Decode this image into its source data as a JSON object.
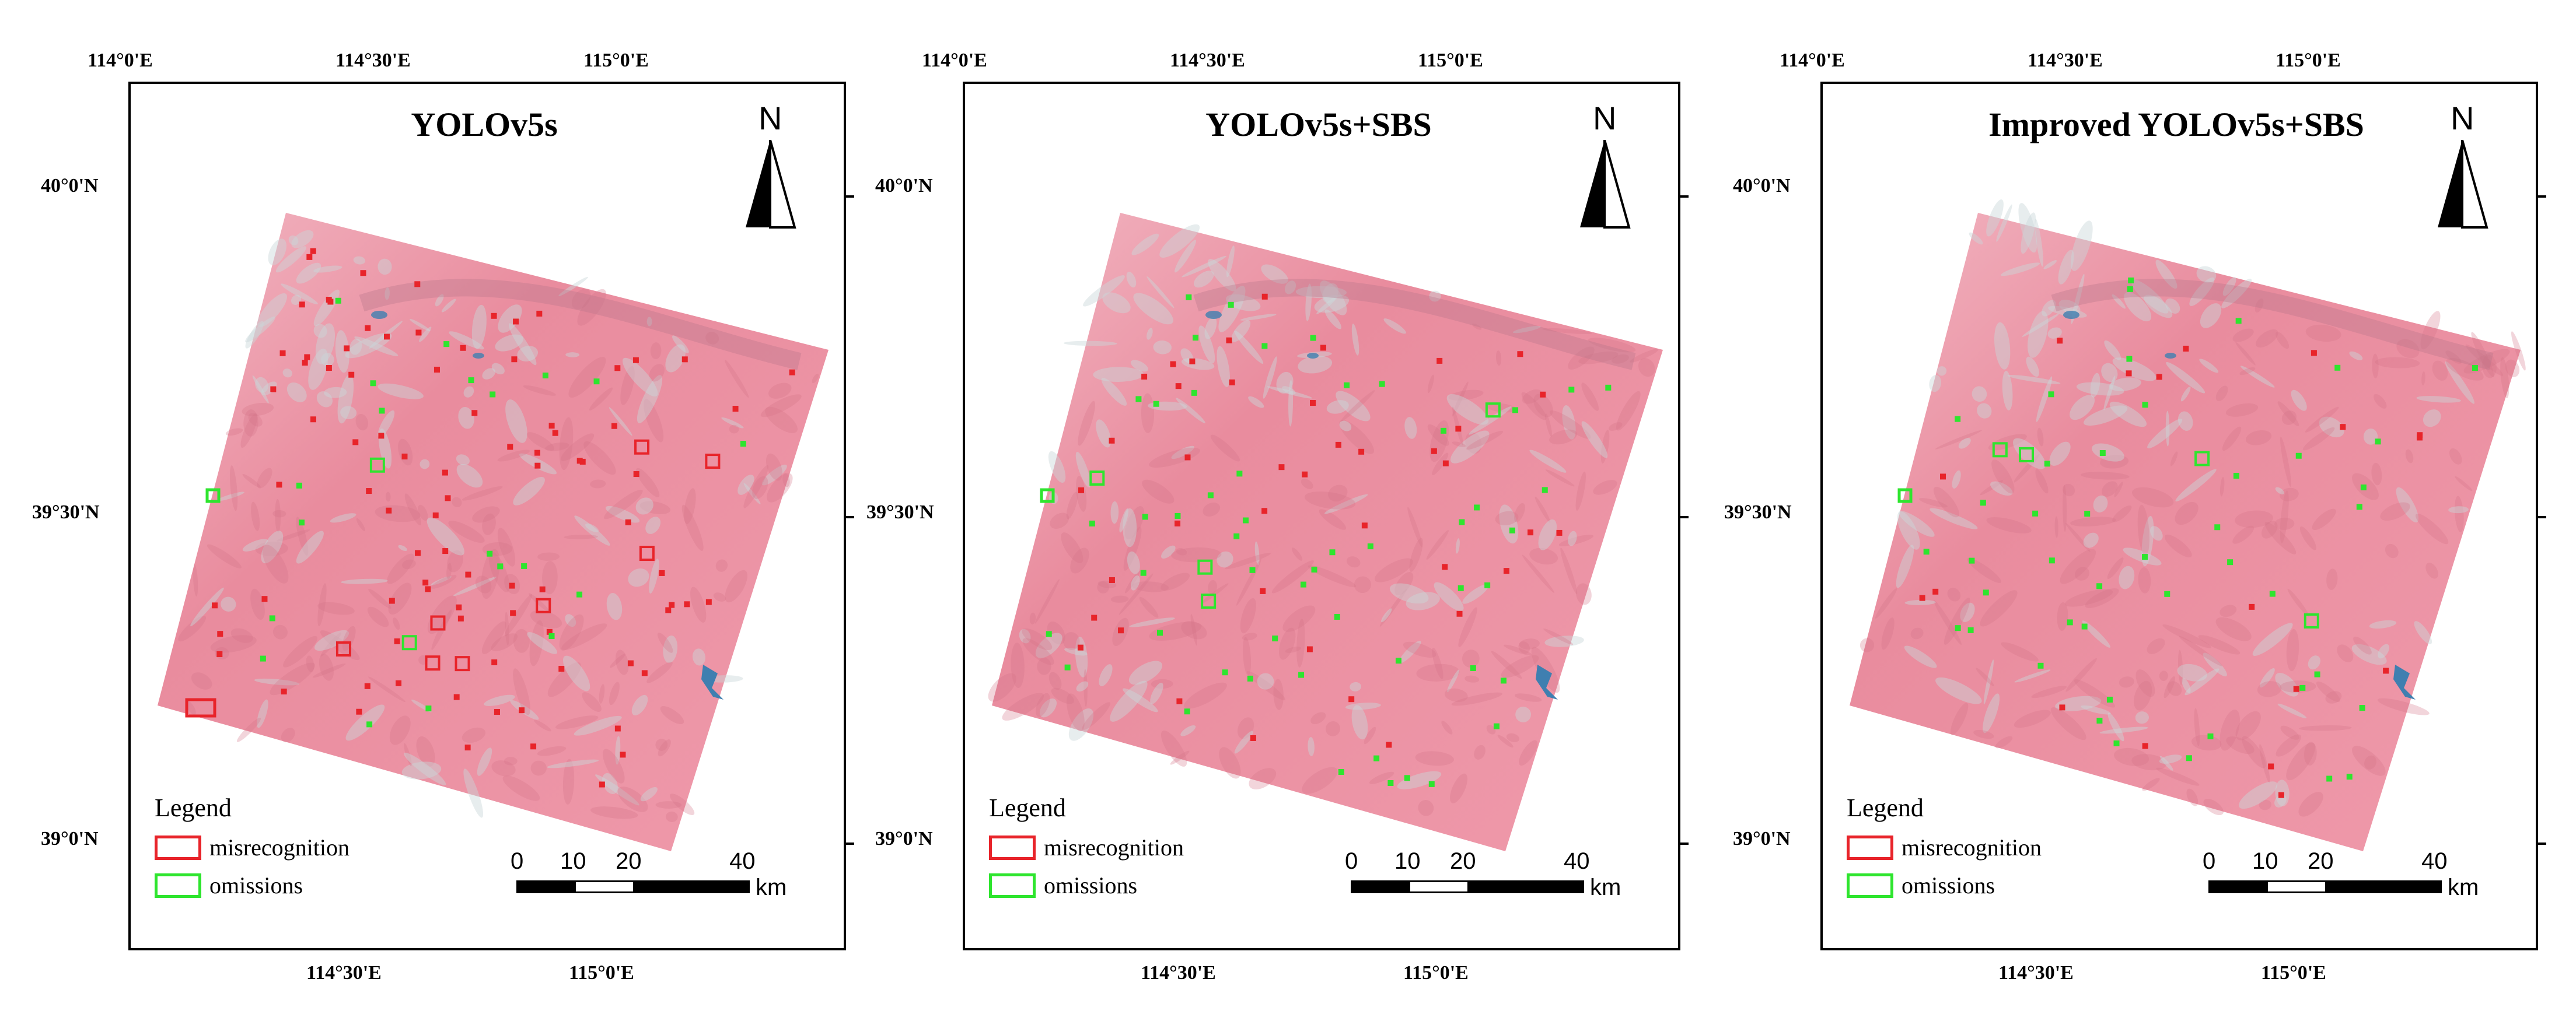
{
  "coordinates": {
    "top_lon": [
      "114°0'E",
      "114°30'E",
      "115°0'E"
    ],
    "bottom_lon": [
      "114°30'E",
      "115°0'E"
    ],
    "lat": [
      "40°0'N",
      "39°30'N",
      "39°0'N"
    ]
  },
  "panels": [
    {
      "title": "YOLOv5s"
    },
    {
      "title": "YOLOv5s+SBS"
    },
    {
      "title": "Improved YOLOv5s+SBS"
    }
  ],
  "north_arrow": {
    "label": "N"
  },
  "legend": {
    "title": "Legend",
    "items": [
      {
        "label": "misrecognition",
        "color": "#e8242a"
      },
      {
        "label": "omissions",
        "color": "#2ee52e"
      }
    ]
  },
  "scale_bar": {
    "ticks": [
      "0",
      "10",
      "20",
      "40"
    ],
    "unit": "km"
  },
  "colors": {
    "land": "#e98c9e",
    "land_light": "#f2b6c2",
    "water": "#3f7fb0",
    "misrecognition": "#e8242a",
    "omissions": "#2ee52e"
  }
}
